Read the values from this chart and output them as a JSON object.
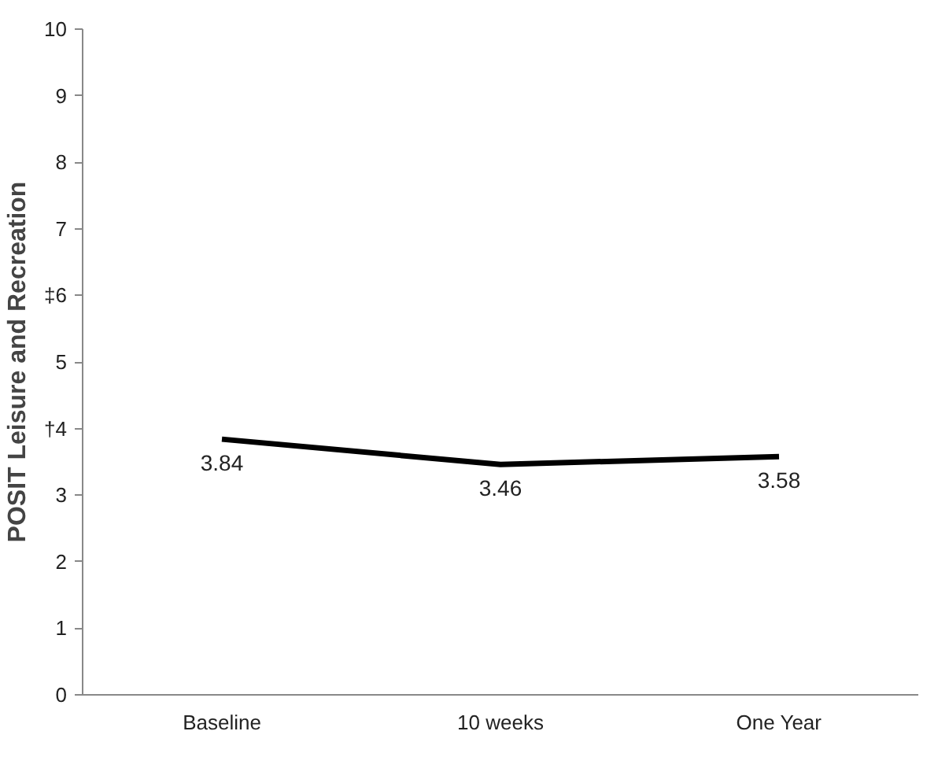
{
  "chart_data": {
    "type": "line",
    "ylabel": "POSIT Leisure and Recreation",
    "categories": [
      "Baseline",
      "10 weeks",
      "One Year"
    ],
    "series": [
      {
        "color": "#000000",
        "values": [
          3.84,
          3.46,
          3.58
        ]
      }
    ],
    "ylim": [
      0,
      10
    ],
    "yticks": [
      0,
      1,
      2,
      3,
      {
        "value": 4,
        "label": "†4"
      },
      5,
      {
        "value": 6,
        "label": "‡6"
      },
      7,
      8,
      9,
      10
    ],
    "data_labels": true,
    "grid": false,
    "marker": "none",
    "line_style": "solid"
  }
}
